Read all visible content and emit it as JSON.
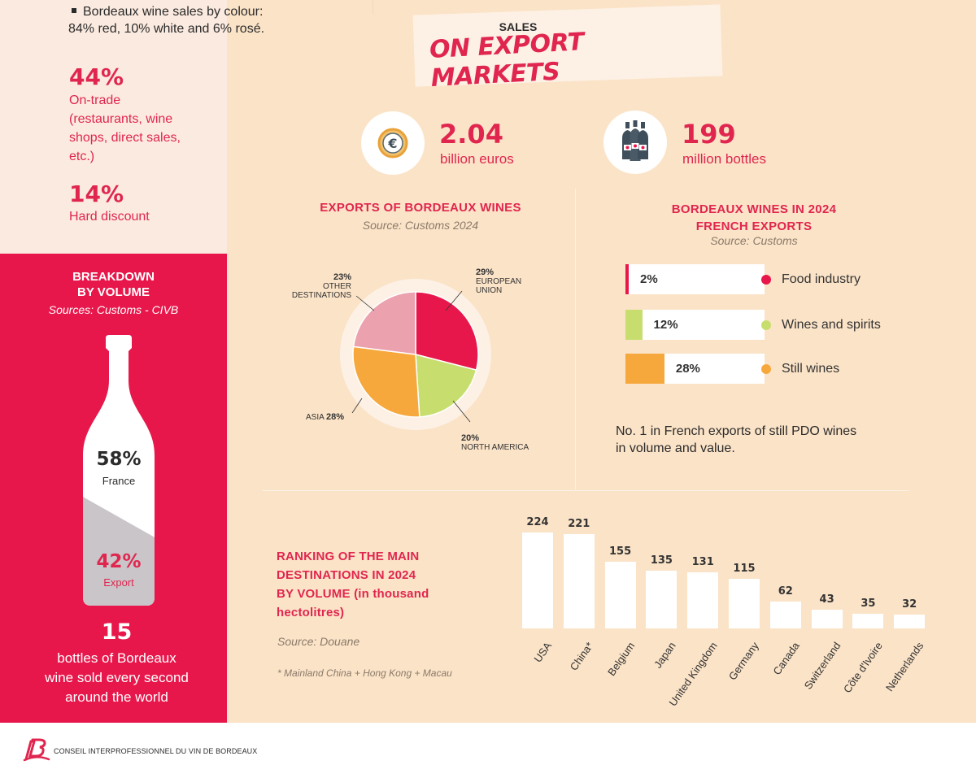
{
  "left": {
    "bullet": "Bordeaux wine sales by colour:",
    "bullet_line2": "84% red, 10% white and 6% rosé.",
    "stat1_value": "44%",
    "stat1_label": [
      "On-trade",
      "(restaurants, wine",
      "shops, direct sales,",
      "etc.)"
    ],
    "stat2_value": "14%",
    "stat2_label": "Hard discount"
  },
  "breakdown": {
    "title_line1": "BREAKDOWN",
    "title_line2": "BY VOLUME",
    "source": "Sources: Customs - CIVB",
    "france_value": "58%",
    "france_label": "France",
    "export_value": "42%",
    "export_label": "Export",
    "france_fraction": 0.58,
    "bottles_number": "15",
    "bottles_text": [
      "bottles of Bordeaux",
      "wine sold every second",
      "around the world"
    ]
  },
  "header": {
    "small": "SALES",
    "big": "ON EXPORT MARKETS"
  },
  "kpis": {
    "value_number": "2.04",
    "value_unit": "billion euros",
    "value_icon": "euro-coin-icon",
    "volume_number": "199",
    "volume_unit": "million bottles",
    "volume_icon": "wine-bottles-icon"
  },
  "pie_section": {
    "title": "EXPORTS OF BORDEAUX WINES",
    "source": "Source: Customs 2024"
  },
  "french_exports": {
    "title_line1": "BORDEAUX WINES IN 2024",
    "title_line2": "FRENCH EXPORTS",
    "source": "Source: Customs",
    "note_line1": "No. 1 in French exports of still PDO wines",
    "note_line2": "in volume and value."
  },
  "ranking": {
    "title_lines": [
      "RANKING OF THE MAIN",
      "DESTINATIONS IN 2024",
      "BY VOLUME (in thousand",
      "hectolitres)"
    ],
    "source": "Source: Douane",
    "footnote": "* Mainland China + Hong Kong + Macau"
  },
  "footer": {
    "org": "CONSEIL INTERPROFESSIONNEL DU VIN DE BORDEAUX",
    "logo_icon": "civb-logo-icon"
  },
  "colors": {
    "crimson": "#e0264f",
    "red_panel": "#e8174b",
    "peach": "#fbe3c7",
    "pie_red": "#e8174b",
    "pie_green": "#c7de6f",
    "pie_orange": "#f6a83c",
    "pie_pink": "#eba1ae"
  },
  "chart_data": [
    {
      "type": "pie",
      "slices": [
        {
          "label": "EUROPEAN UNION",
          "value": 29,
          "display": "29%",
          "color": "#e8174b"
        },
        {
          "label": "NORTH AMERICA",
          "value": 20,
          "display": "20%",
          "color": "#c7de6f"
        },
        {
          "label": "ASIA",
          "value": 28,
          "display": "28%",
          "color": "#f6a83c"
        },
        {
          "label": "OTHER DESTINATIONS",
          "value": 23,
          "display": "23%",
          "color": "#eba1ae"
        }
      ]
    },
    {
      "type": "bar",
      "orientation": "horizontal",
      "categories": [
        "Food industry",
        "Wines and spirits",
        "Still wines"
      ],
      "values": [
        2,
        12,
        28
      ],
      "labels": [
        "2%",
        "12%",
        "28%"
      ],
      "colors": [
        "#e8174b",
        "#c7de6f",
        "#f6a83c"
      ],
      "xlim": [
        0,
        100
      ]
    },
    {
      "type": "bar",
      "categories": [
        "USA",
        "China*",
        "Belgium",
        "Japan",
        "United Kingdom",
        "Germany",
        "Canada",
        "Switzerland",
        "Côte d'Ivoire",
        "Netherlands"
      ],
      "values": [
        224,
        221,
        155,
        135,
        131,
        115,
        62,
        43,
        35,
        32
      ],
      "ylim": [
        0,
        224
      ]
    }
  ]
}
